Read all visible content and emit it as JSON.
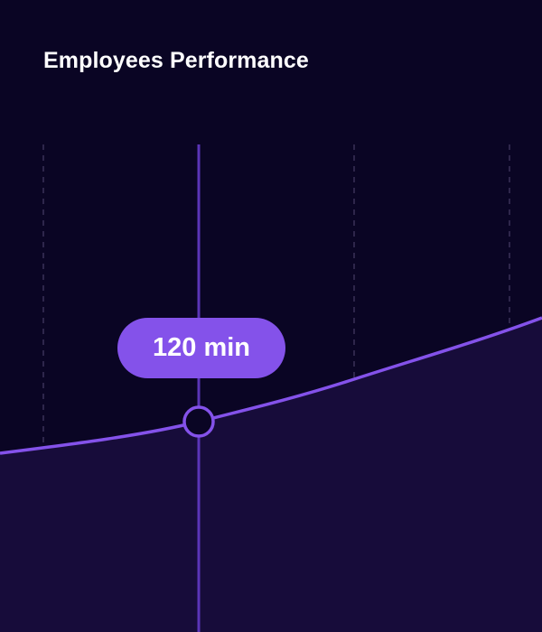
{
  "chart_data": {
    "type": "area",
    "title": "Employees Performance",
    "highlight": {
      "label": "120 min",
      "value": 120,
      "unit": "min"
    },
    "grid": "vertical dashed",
    "colors": {
      "background": "#0a0524",
      "line": "#8452ea",
      "fill": "#170c3a",
      "tooltip": "#8452ea",
      "cursor": "#5b35b8"
    }
  }
}
